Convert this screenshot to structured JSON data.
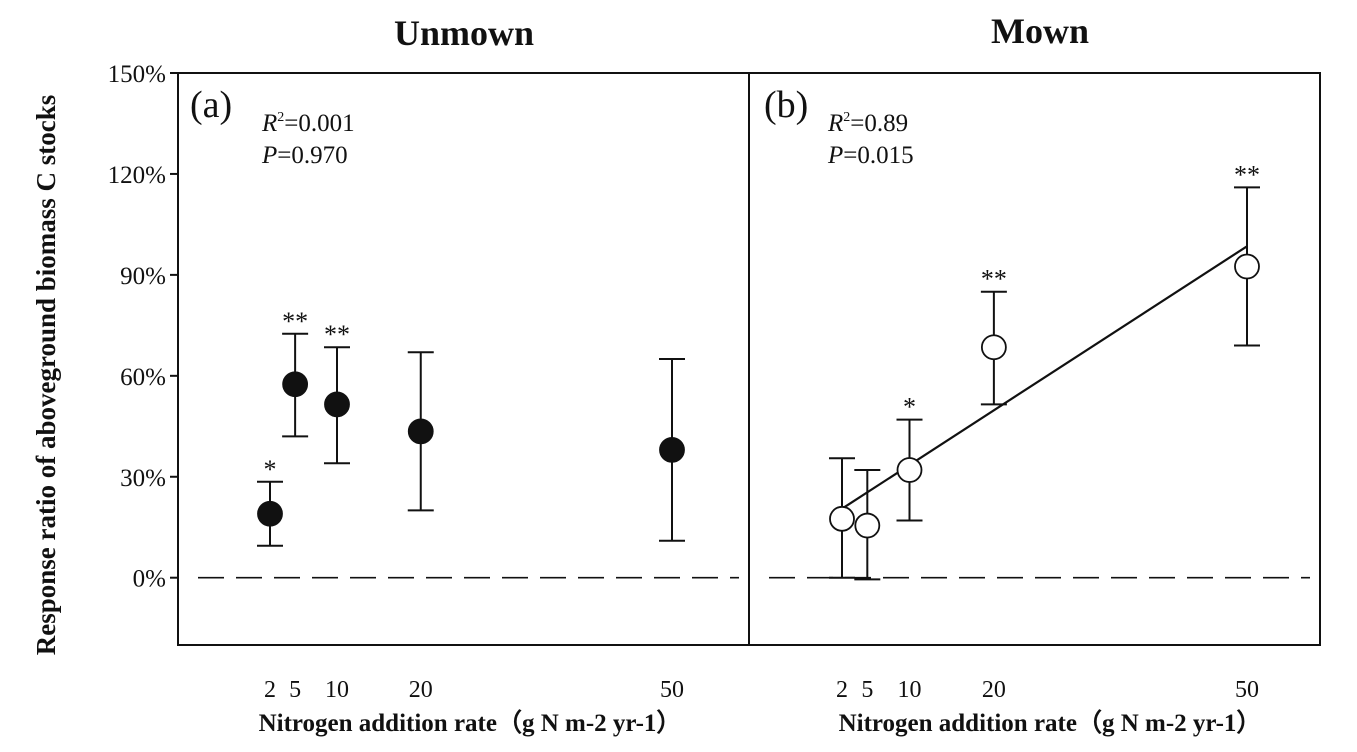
{
  "chart_data": [
    {
      "type": "scatter",
      "panel_label": "(a)",
      "title": "Unmown",
      "xlabel": "Nitrogen addition rate（g N m-2 yr-1）",
      "ylabel": "Response ratio of aboveground biomass C stocks",
      "stats": {
        "r2": "=0.001",
        "p": "=0.970"
      },
      "x_ticks": [
        2,
        5,
        10,
        20,
        50
      ],
      "y_ticks": [
        "0%",
        "30%",
        "60%",
        "90%",
        "120%",
        "150%"
      ],
      "ylim": [
        -20,
        150
      ],
      "xlim": [
        -10,
        60
      ],
      "marker": "filled",
      "points": [
        {
          "x": 2,
          "y": 19,
          "lo": 9.5,
          "hi": 28.5,
          "sig": "*"
        },
        {
          "x": 5,
          "y": 57.5,
          "lo": 42,
          "hi": 72.5,
          "sig": "**"
        },
        {
          "x": 10,
          "y": 51.5,
          "lo": 34,
          "hi": 68.5,
          "sig": "**"
        },
        {
          "x": 20,
          "y": 43.5,
          "lo": 20,
          "hi": 67,
          "sig": ""
        },
        {
          "x": 50,
          "y": 38,
          "lo": 11,
          "hi": 65,
          "sig": ""
        }
      ],
      "fit_line": null,
      "zero_line": true
    },
    {
      "type": "scatter",
      "panel_label": "(b)",
      "title": "Mown",
      "xlabel": "Nitrogen addition rate（g N m-2 yr-1）",
      "stats": {
        "r2": "=0.89",
        "p": "=0.015"
      },
      "x_ticks": [
        2,
        5,
        10,
        20,
        50
      ],
      "ylim": [
        -20,
        150
      ],
      "xlim": [
        -10,
        60
      ],
      "marker": "open",
      "points": [
        {
          "x": 2,
          "y": 17.5,
          "lo": 0,
          "hi": 35.5,
          "sig": ""
        },
        {
          "x": 5,
          "y": 15.5,
          "lo": -0.5,
          "hi": 32,
          "sig": ""
        },
        {
          "x": 10,
          "y": 32,
          "lo": 17,
          "hi": 47,
          "sig": "*"
        },
        {
          "x": 20,
          "y": 68.5,
          "lo": 51.5,
          "hi": 85,
          "sig": "**"
        },
        {
          "x": 50,
          "y": 92.5,
          "lo": 69,
          "hi": 116,
          "sig": "**"
        }
      ],
      "fit_line": {
        "x": [
          2,
          50
        ],
        "y": [
          20.5,
          98.5
        ]
      },
      "zero_line": true
    }
  ]
}
